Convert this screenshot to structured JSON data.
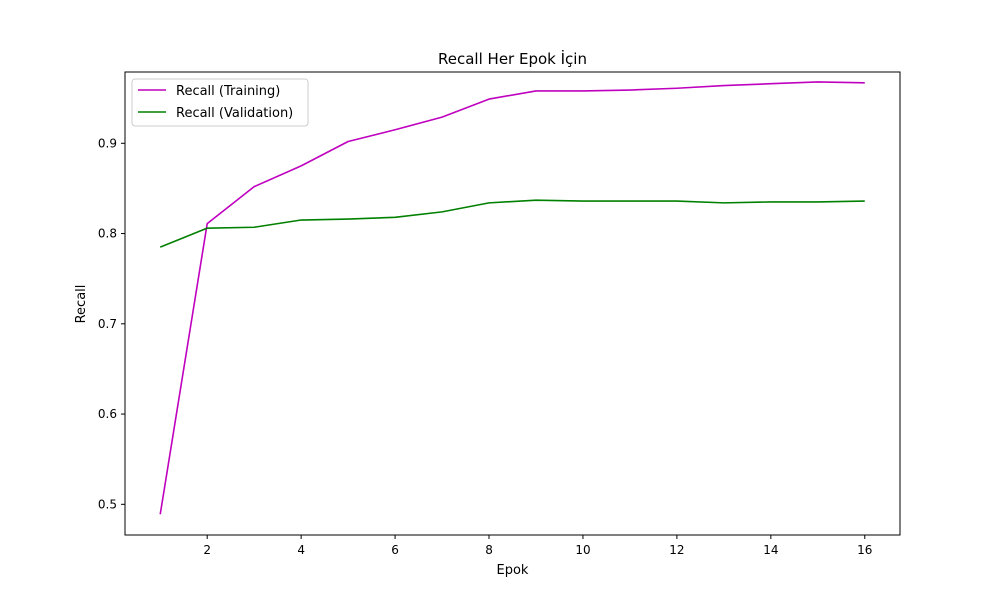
{
  "chart_data": {
    "type": "line",
    "title": "Recall Her Epok İçin",
    "xlabel": "Epok",
    "ylabel": "Recall",
    "x": [
      1,
      2,
      3,
      4,
      5,
      6,
      7,
      8,
      9,
      10,
      11,
      12,
      13,
      14,
      15,
      16
    ],
    "xlim": [
      0.25,
      16.75
    ],
    "ylim": [
      0.466,
      0.979
    ],
    "x_ticks": [
      2,
      4,
      6,
      8,
      10,
      12,
      14,
      16
    ],
    "y_ticks": [
      0.5,
      0.6,
      0.7,
      0.8,
      0.9
    ],
    "grid": false,
    "legend_position": "top-left",
    "series": [
      {
        "name": "Recall (Training)",
        "color": "#bf00bf",
        "values": [
          0.489,
          0.811,
          0.852,
          0.875,
          0.902,
          0.915,
          0.929,
          0.949,
          0.958,
          0.958,
          0.959,
          0.961,
          0.964,
          0.966,
          0.968,
          0.967
        ]
      },
      {
        "name": "Recall (Validation)",
        "color": "#008000",
        "values": [
          0.785,
          0.806,
          0.807,
          0.815,
          0.816,
          0.818,
          0.824,
          0.834,
          0.837,
          0.836,
          0.836,
          0.836,
          0.834,
          0.835,
          0.835,
          0.836
        ]
      }
    ]
  }
}
